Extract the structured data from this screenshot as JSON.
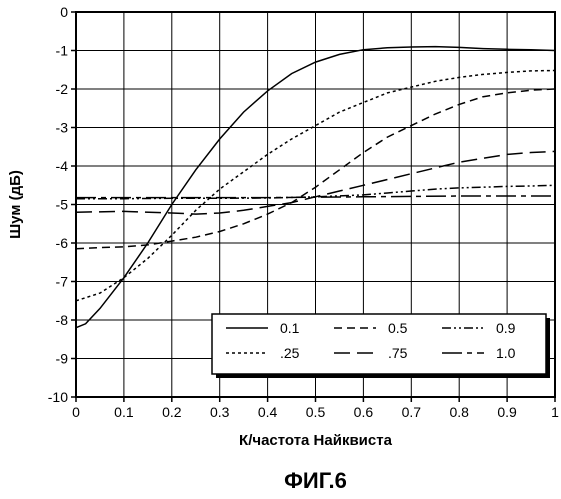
{
  "chart_data": {
    "type": "line",
    "title": "",
    "xlabel": "К/частота Найквиста",
    "ylabel": "Шум (дБ)",
    "caption": "ФИГ.6",
    "xlim": [
      0,
      1
    ],
    "ylim": [
      -10,
      0
    ],
    "xticks": [
      0,
      0.1,
      0.2,
      0.3,
      0.4,
      0.5,
      0.6,
      0.7,
      0.8,
      0.9,
      1
    ],
    "xtick_labels": [
      "0",
      "0.1",
      "0.2",
      "0.3",
      "0.4",
      "0.5",
      "0.6",
      "0.7",
      "0.8",
      "0.9",
      "1"
    ],
    "yticks": [
      0,
      -1,
      -2,
      -3,
      -4,
      -5,
      -6,
      -7,
      -8,
      -9,
      -10
    ],
    "ytick_labels": [
      "0",
      "-1",
      "-2",
      "-3",
      "-4",
      "-5",
      "-6",
      "-7",
      "-8",
      "-9",
      "-10"
    ],
    "grid": true,
    "legend_position": "bottom-right",
    "series": [
      {
        "name": "0.1",
        "dash": "solid",
        "x": [
          0,
          0.02,
          0.05,
          0.1,
          0.15,
          0.2,
          0.25,
          0.3,
          0.35,
          0.4,
          0.45,
          0.5,
          0.55,
          0.6,
          0.65,
          0.7,
          0.75,
          0.8,
          0.85,
          0.9,
          0.95,
          1.0
        ],
        "y": [
          -8.2,
          -8.1,
          -7.7,
          -6.9,
          -6.0,
          -5.0,
          -4.1,
          -3.3,
          -2.6,
          -2.05,
          -1.6,
          -1.3,
          -1.1,
          -0.98,
          -0.93,
          -0.91,
          -0.9,
          -0.92,
          -0.95,
          -0.97,
          -0.98,
          -1.0
        ]
      },
      {
        "name": ".25",
        "dash": "short",
        "x": [
          0,
          0.05,
          0.1,
          0.15,
          0.2,
          0.25,
          0.3,
          0.35,
          0.4,
          0.45,
          0.5,
          0.55,
          0.6,
          0.65,
          0.7,
          0.75,
          0.8,
          0.85,
          0.9,
          0.95,
          1.0
        ],
        "y": [
          -7.5,
          -7.3,
          -6.9,
          -6.4,
          -5.8,
          -5.15,
          -4.6,
          -4.15,
          -3.7,
          -3.3,
          -2.95,
          -2.6,
          -2.35,
          -2.1,
          -1.95,
          -1.8,
          -1.7,
          -1.62,
          -1.57,
          -1.53,
          -1.52
        ]
      },
      {
        "name": "0.5",
        "dash": "medium",
        "x": [
          0,
          0.05,
          0.1,
          0.15,
          0.2,
          0.25,
          0.3,
          0.35,
          0.4,
          0.45,
          0.5,
          0.55,
          0.6,
          0.65,
          0.7,
          0.75,
          0.8,
          0.85,
          0.9,
          0.95,
          1.0
        ],
        "y": [
          -6.15,
          -6.12,
          -6.1,
          -6.05,
          -5.95,
          -5.85,
          -5.7,
          -5.5,
          -5.25,
          -4.95,
          -4.55,
          -4.1,
          -3.65,
          -3.25,
          -2.95,
          -2.65,
          -2.4,
          -2.2,
          -2.1,
          -2.03,
          -2.0
        ]
      },
      {
        "name": ".75",
        "dash": "long",
        "x": [
          0,
          0.1,
          0.2,
          0.25,
          0.3,
          0.35,
          0.4,
          0.45,
          0.5,
          0.55,
          0.6,
          0.65,
          0.7,
          0.75,
          0.8,
          0.85,
          0.9,
          0.95,
          1.0
        ],
        "y": [
          -5.2,
          -5.18,
          -5.22,
          -5.25,
          -5.22,
          -5.15,
          -5.05,
          -4.95,
          -4.8,
          -4.65,
          -4.5,
          -4.35,
          -4.2,
          -4.05,
          -3.9,
          -3.8,
          -3.7,
          -3.65,
          -3.62
        ]
      },
      {
        "name": "0.9",
        "dash": "dashdot",
        "x": [
          0,
          0.1,
          0.2,
          0.3,
          0.4,
          0.5,
          0.6,
          0.65,
          0.7,
          0.75,
          0.8,
          0.85,
          0.9,
          0.95,
          1.0
        ],
        "y": [
          -4.85,
          -4.85,
          -4.84,
          -4.84,
          -4.83,
          -4.8,
          -4.75,
          -4.7,
          -4.65,
          -4.6,
          -4.57,
          -4.55,
          -4.53,
          -4.52,
          -4.5
        ]
      },
      {
        "name": "1.0",
        "dash": "longshort",
        "x": [
          0,
          0.1,
          0.2,
          0.3,
          0.4,
          0.5,
          0.6,
          0.7,
          0.8,
          0.9,
          1.0
        ],
        "y": [
          -4.82,
          -4.82,
          -4.82,
          -4.82,
          -4.82,
          -4.81,
          -4.8,
          -4.79,
          -4.78,
          -4.78,
          -4.78
        ]
      }
    ]
  }
}
